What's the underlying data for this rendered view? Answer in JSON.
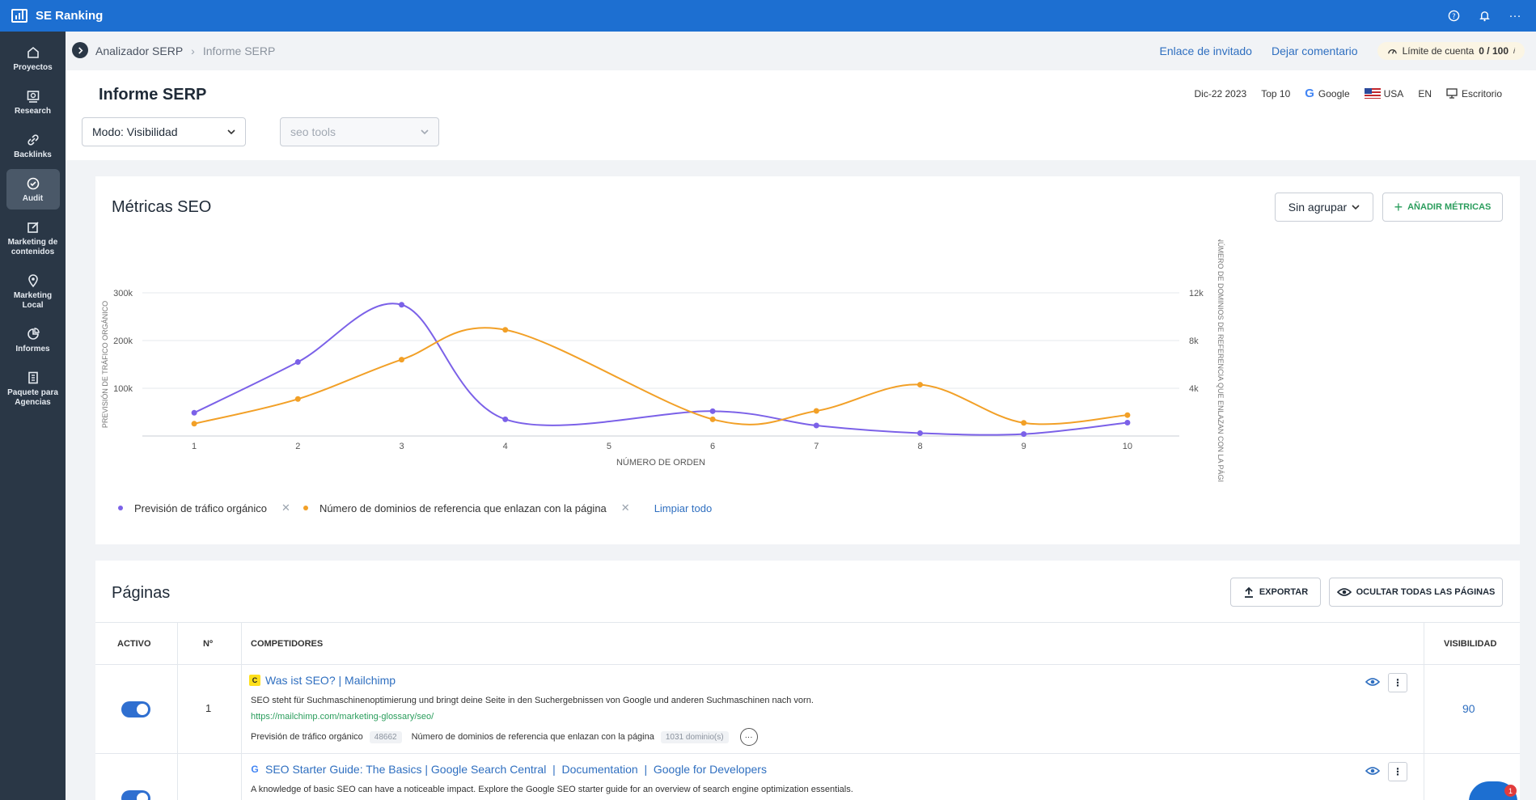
{
  "app": {
    "name": "SE Ranking"
  },
  "topbar": {
    "icons": [
      "help-icon",
      "bell-icon",
      "more-icon"
    ],
    "more": "···"
  },
  "sidebar": {
    "items": [
      {
        "label": "Proyectos",
        "icon": "home-icon"
      },
      {
        "label": "Research",
        "icon": "research-icon"
      },
      {
        "label": "Backlinks",
        "icon": "link-icon"
      },
      {
        "label": "Audit",
        "icon": "check-circle-icon",
        "active": true
      },
      {
        "label": "Marketing de contenidos",
        "icon": "edit-icon"
      },
      {
        "label": "Marketing Local",
        "icon": "pin-icon"
      },
      {
        "label": "Informes",
        "icon": "pie-icon"
      },
      {
        "label": "Paquete para Agencias",
        "icon": "building-icon"
      }
    ]
  },
  "breadcrumb": {
    "parent": "Analizador SERP",
    "sep": "›",
    "current": "Informe SERP"
  },
  "header_links": {
    "guest": "Enlace de invitado",
    "comment": "Dejar comentario"
  },
  "limit": {
    "label": "Límite de cuenta",
    "value": "0 / 100",
    "info": "i"
  },
  "page": {
    "title": "Informe SERP"
  },
  "meta": {
    "date": "Dic-22 2023",
    "top": "Top 10",
    "engine": "Google",
    "country": "USA",
    "lang": "EN",
    "device": "Escritorio"
  },
  "filters": {
    "mode": "Modo: Visibilidad",
    "keyword_placeholder": "seo tools"
  },
  "metrics": {
    "title": "Métricas SEO",
    "group_label": "Sin agrupar",
    "add_label": "AÑADIR MÉTRICAS",
    "legend_clear": "Limpiar todo"
  },
  "chart_data": {
    "type": "line",
    "xlabel": "NÚMERO DE ORDEN",
    "x": [
      1,
      2,
      3,
      4,
      5,
      6,
      7,
      8,
      9,
      10
    ],
    "y_left": {
      "label": "PREVISIÓN DE TRÁFICO ORGÁNICO",
      "ticks": [
        "100k",
        "200k",
        "300k"
      ],
      "range": [
        0,
        300000
      ]
    },
    "y_right": {
      "label": "NÚMERO DE DOMINIOS DE REFERENCIA QUE ENLAZAN CON LA PÁGINA",
      "ticks": [
        "4k",
        "8k",
        "12k"
      ],
      "range": [
        0,
        12000
      ]
    },
    "series": [
      {
        "name": "Previsión de tráfico orgánico",
        "axis": "left",
        "color": "#7b61e8",
        "values": [
          48662,
          155000,
          275000,
          35000,
          null,
          52000,
          22000,
          6000,
          4000,
          28000
        ]
      },
      {
        "name": "Número de dominios de referencia que enlazan con la página",
        "axis": "right",
        "color": "#f2a027",
        "values": [
          1031,
          3100,
          6400,
          8900,
          null,
          1400,
          2100,
          4300,
          1100,
          1750
        ]
      }
    ],
    "grid": true,
    "legend": "bottom-left"
  },
  "pages": {
    "title": "Páginas",
    "export_label": "EXPORTAR",
    "hide_label": "OCULTAR TODAS LAS PÁGINAS",
    "columns": {
      "active": "ACTIVO",
      "num": "Nº",
      "competitors": "COMPETIDORES",
      "visibility": "VISIBILIDAD"
    },
    "rows": [
      {
        "num": "1",
        "title": "Was ist SEO? | Mailchimp",
        "desc": "SEO steht für Suchmaschinenoptimierung und bringt deine Seite in den Suchergebnissen von Google und anderen Suchmaschinen nach vorn.",
        "url": "https://mailchimp.com/marketing-glossary/seo/",
        "metric1_label": "Previsión de tráfico orgánico",
        "metric1_value": "48662",
        "metric2_label": "Número de dominios de referencia que enlazan con la página",
        "metric2_value": "1031 dominio(s)",
        "visibility": "90"
      },
      {
        "num": "",
        "title": "SEO Starter Guide: The Basics | Google Search Central  |  Documentation  |  Google for Developers",
        "desc": "A knowledge of basic SEO can have a noticeable impact. Explore the Google SEO starter guide for an overview of search engine optimization essentials.",
        "visibility": ""
      }
    ]
  },
  "chat": {
    "badge": "1"
  }
}
